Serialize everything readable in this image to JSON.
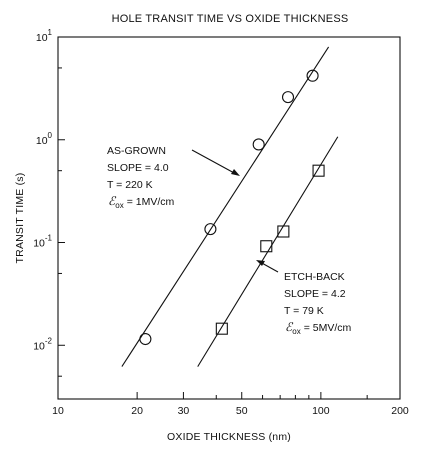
{
  "chart_data": {
    "type": "scatter",
    "title": "HOLE TRANSIT TIME VS OXIDE THICKNESS",
    "xlabel": "OXIDE THICKNESS (nm)",
    "ylabel": "TRANSIT TIME (s)",
    "x_scale": "log",
    "y_scale": "log",
    "xlim": [
      10,
      200
    ],
    "ylim": [
      0.003,
      10
    ],
    "x_ticks": [
      10,
      20,
      30,
      50,
      100,
      200
    ],
    "x_tick_labels": [
      "10",
      "20",
      "30",
      "50",
      "100",
      "200"
    ],
    "y_ticks": [
      0.01,
      0.1,
      1,
      10
    ],
    "y_tick_labels": [
      {
        "base": "10",
        "exp": "-2"
      },
      {
        "base": "10",
        "exp": "-1"
      },
      {
        "base": "10",
        "exp": "0"
      },
      {
        "base": "10",
        "exp": "1"
      }
    ],
    "grid": false,
    "series": [
      {
        "marker": "circle",
        "points": [
          [
            21.5,
            0.0115
          ],
          [
            38,
            0.135
          ],
          [
            58,
            0.9
          ],
          [
            75,
            2.6
          ],
          [
            93,
            4.2
          ]
        ],
        "fit": {
          "slope": 4.0,
          "x": [
            17.5,
            107
          ],
          "y": [
            0.0062,
            8.0
          ]
        },
        "annotation": [
          "AS-GROWN",
          "SLOPE = 4.0",
          "T = 220 K",
          "ℰ",
          "ox",
          "= 1MV/cm"
        ]
      },
      {
        "marker": "square",
        "points": [
          [
            42,
            0.0145
          ],
          [
            62,
            0.092
          ],
          [
            72,
            0.128
          ],
          [
            98,
            0.5
          ]
        ],
        "fit": {
          "slope": 4.2,
          "x": [
            34,
            116
          ],
          "y": [
            0.0062,
            1.07
          ]
        },
        "annotation": [
          "ETCH-BACK",
          "SLOPE = 4.2",
          "T = 79 K",
          "ℰ",
          "ox",
          "= 5MV/cm"
        ]
      }
    ]
  }
}
